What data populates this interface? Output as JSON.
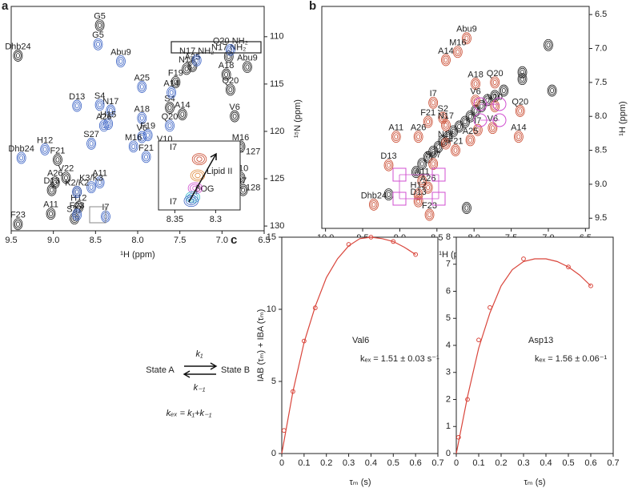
{
  "chart_data": [
    {
      "type": "scatter",
      "panel": "a",
      "xlabel": "¹H (ppm)",
      "ylabel": "¹⁵N (ppm)",
      "xlim": [
        9.5,
        6.5
      ],
      "ylim": [
        130.5,
        106.8
      ],
      "xticks": [
        9.5,
        {
          "value": 9,
          "label": "9.0"
        },
        8.5,
        {
          "value": 8,
          "label": "8.0"
        },
        7.5,
        {
          "value": 7,
          "label": "7.0"
        },
        6.5
      ],
      "yticks": [
        110,
        115,
        120,
        125,
        130
      ],
      "series": [
        {
          "color": "#1a1a1a",
          "labels": [
            "Dhb24",
            "G5",
            "N17",
            "A25",
            "F19",
            "S4",
            "A14",
            "Q20",
            "V6",
            "M16",
            "F21",
            "V22",
            "A26",
            "D13",
            null,
            "V10",
            "I7",
            "H12",
            "A11",
            "S27",
            "F23",
            "N17 NH₂",
            "A18",
            "Abu9"
          ],
          "x": [
            9.42,
            8.45,
            7.42,
            7.35,
            7.55,
            7.62,
            7.47,
            6.9,
            6.85,
            6.78,
            8.95,
            8.85,
            8.98,
            9.02,
            8.72,
            6.78,
            6.75,
            8.7,
            9.03,
            8.75,
            9.42,
            6.92,
            6.95,
            6.7
          ],
          "values": [
            112,
            108.8,
            113.4,
            113.1,
            114.8,
            117.5,
            118.2,
            115.6,
            118.4,
            121.6,
            123,
            124.9,
            125.4,
            126.2,
            126.4,
            124.9,
            126.2,
            128,
            128.7,
            129.2,
            129.8,
            112.1,
            114,
            113.2
          ]
        },
        {
          "color": "#3a62c4",
          "labels": [
            "G5",
            "Abu9",
            "A25",
            "A14",
            "D13",
            "N17",
            "S4",
            "H15",
            "A26",
            "A18",
            "Q20",
            "V6",
            "F19",
            "M16",
            "V10",
            "S27",
            "F21",
            "H12",
            "Dhb24",
            "V22",
            "A11",
            "K3/K3",
            "K2/K2",
            "F23",
            "I7",
            "Q20 NH₂",
            "N17 NH₂"
          ],
          "x": [
            8.47,
            8.2,
            7.95,
            7.6,
            8.72,
            8.32,
            8.45,
            8.35,
            8.4,
            7.95,
            7.62,
            7.95,
            7.88,
            8.05,
            7.68,
            8.55,
            7.9,
            9.1,
            9.38,
            7.6,
            8.45,
            8.55,
            8.72,
            8.72,
            8.38,
            6.9,
            7.3
          ],
          "values": [
            110.8,
            112.6,
            115.3,
            115.9,
            117.3,
            117.8,
            117.2,
            119.2,
            119.4,
            118.6,
            119.4,
            120.6,
            120.4,
            121.6,
            121.8,
            121.3,
            122.7,
            121.9,
            122.8,
            125.6,
            125.4,
            125.9,
            126.4,
            128.8,
            129,
            111.4,
            112.5
          ]
        }
      ]
    },
    {
      "type": "scatter",
      "xlim": [
        8.37,
        8.27
      ],
      "ylim": [
        128.6,
        126.7
      ],
      "xticks": [
        8.35,
        8.3
      ],
      "yticks": [
        127,
        128
      ],
      "annotations": [
        "I7",
        "I7",
        "Lipid II",
        "βOG"
      ],
      "series": [
        {
          "color": "#c8452a",
          "x": [
            8.32
          ],
          "values": [
            127.2
          ]
        },
        {
          "color": "#e08a3c",
          "x": [
            8.322
          ],
          "values": [
            127.65
          ]
        },
        {
          "color": "#d04fd0",
          "x": [
            8.325
          ],
          "values": [
            128
          ]
        },
        {
          "color": "#35b7c9",
          "x": [
            8.328
          ],
          "values": [
            128.25
          ]
        },
        {
          "color": "#3a62c4",
          "x": [
            8.33
          ],
          "values": [
            128.35
          ]
        }
      ]
    },
    {
      "type": "scatter",
      "panel": "b",
      "xlabel": "¹H (ppm)",
      "ylabel": "¹H (ppm)",
      "xlim": [
        10.05,
        6.45
      ],
      "ylim": [
        9.65,
        6.38
      ],
      "xticks": [
        {
          "value": 10,
          "label": "10.0"
        },
        9.5,
        {
          "value": 9,
          "label": "9.0"
        },
        8.5,
        {
          "value": 8,
          "label": "8.0"
        },
        7.5,
        {
          "value": 7,
          "label": "7.0"
        },
        6.5
      ],
      "yticks": [
        6.5,
        {
          "value": 7,
          "label": "7.0"
        },
        7.5,
        {
          "value": 8,
          "label": "8.0"
        },
        8.5,
        {
          "value": 9,
          "label": "9.0"
        },
        9.5
      ],
      "series": [
        {
          "color": "#1a1a1a",
          "x": [
            8.78,
            8.7,
            8.62,
            8.55,
            8.48,
            8.42,
            8.35,
            8.28,
            8.2,
            8.12,
            8.05,
            7.98,
            7.9,
            7.82,
            7.72,
            7.6,
            7.35,
            7.35,
            7.0,
            6.95,
            9.15,
            8.1
          ],
          "values": [
            8.82,
            8.7,
            8.6,
            8.52,
            8.45,
            8.36,
            8.3,
            8.22,
            8.15,
            8.08,
            8.0,
            7.92,
            7.85,
            7.76,
            7.7,
            7.62,
            7.35,
            7.45,
            6.95,
            7.62,
            9.15,
            9.35
          ]
        },
        {
          "color": "#c8452a",
          "labels": [
            "Abu9",
            "M16",
            "A14",
            "A18",
            "Q20",
            "V6",
            "I7",
            "V10",
            "Q20",
            "S2",
            "F21",
            "N17",
            "I7",
            "V6",
            "A25",
            "N17",
            "F21",
            "A11",
            "A26",
            "A14",
            "S27",
            "A11",
            "A26",
            "H12",
            "D13",
            "D13",
            "Dhb24",
            "F23"
          ],
          "x": [
            8.1,
            8.22,
            8.38,
            7.98,
            7.72,
            7.98,
            8.55,
            7.72,
            7.38,
            8.42,
            8.62,
            8.38,
            7.95,
            7.75,
            8.05,
            8.38,
            8.25,
            9.05,
            8.75,
            7.4,
            8.55,
            8.7,
            8.62,
            8.75,
            9.15,
            8.75,
            9.35,
            8.6
          ],
          "values": [
            6.85,
            7.05,
            7.17,
            7.52,
            7.5,
            7.77,
            7.8,
            7.85,
            7.92,
            8.02,
            8.08,
            8.13,
            8.2,
            8.17,
            8.35,
            8.4,
            8.5,
            8.3,
            8.3,
            8.3,
            8.7,
            8.95,
            9.05,
            9.15,
            8.72,
            9.25,
            9.3,
            9.45
          ]
        }
      ]
    },
    {
      "type": "line",
      "panel": "c",
      "xlabel": "τₘ (s)",
      "ylabel": "IAB (τₘ) + IBA (τₘ)",
      "annotations": [
        "Val6",
        "kₑₓ = 1.51 ± 0.03 s⁻¹"
      ],
      "xlim": [
        0,
        0.7
      ],
      "ylim": [
        0,
        15
      ],
      "xticks": [
        0,
        0.1,
        0.2,
        0.3,
        0.4,
        0.5,
        0.6,
        0.7
      ],
      "yticks": [
        0,
        5,
        10,
        15
      ],
      "series": [
        {
          "color": "#d9453b",
          "mode": "markers",
          "x": [
            0.01,
            0.05,
            0.1,
            0.15,
            0.3,
            0.4,
            0.5,
            0.6
          ],
          "values": [
            1.6,
            4.3,
            7.8,
            10.1,
            14.5,
            15.0,
            14.7,
            13.8
          ]
        },
        {
          "color": "#d9453b",
          "mode": "line",
          "x": [
            0,
            0.05,
            0.1,
            0.15,
            0.2,
            0.25,
            0.3,
            0.35,
            0.4,
            0.45,
            0.5,
            0.55,
            0.6
          ],
          "values": [
            0,
            4.3,
            7.7,
            10.2,
            12.2,
            13.5,
            14.4,
            14.9,
            15.0,
            14.9,
            14.7,
            14.3,
            13.8
          ]
        }
      ]
    },
    {
      "type": "line",
      "xlabel": "τₘ (s)",
      "annotations": [
        "Asp13",
        "kₑₓ = 1.56 ± 0.06⁻¹"
      ],
      "xlim": [
        0,
        0.7
      ],
      "ylim": [
        0,
        8
      ],
      "xticks": [
        0,
        0.1,
        0.2,
        0.3,
        0.4,
        0.5,
        0.6,
        0.7
      ],
      "yticks": [
        0,
        1,
        2,
        3,
        4,
        5,
        6,
        7,
        8
      ],
      "series": [
        {
          "color": "#d9453b",
          "mode": "markers",
          "x": [
            0.01,
            0.05,
            0.1,
            0.15,
            0.3,
            0.5,
            0.6
          ],
          "values": [
            0.6,
            2.0,
            4.2,
            5.4,
            7.2,
            6.9,
            6.2
          ]
        },
        {
          "color": "#d9453b",
          "mode": "line",
          "x": [
            0,
            0.05,
            0.1,
            0.15,
            0.2,
            0.25,
            0.3,
            0.35,
            0.4,
            0.45,
            0.5,
            0.55,
            0.6
          ],
          "values": [
            0,
            2.1,
            3.9,
            5.2,
            6.2,
            6.8,
            7.1,
            7.2,
            7.2,
            7.1,
            6.9,
            6.6,
            6.2
          ]
        }
      ]
    }
  ],
  "scheme": {
    "state_a": "State A",
    "state_b": "State B",
    "k1": "k₁",
    "k_1": "k₋₁",
    "kex": "kₑₓ = k₁+k₋₁"
  }
}
